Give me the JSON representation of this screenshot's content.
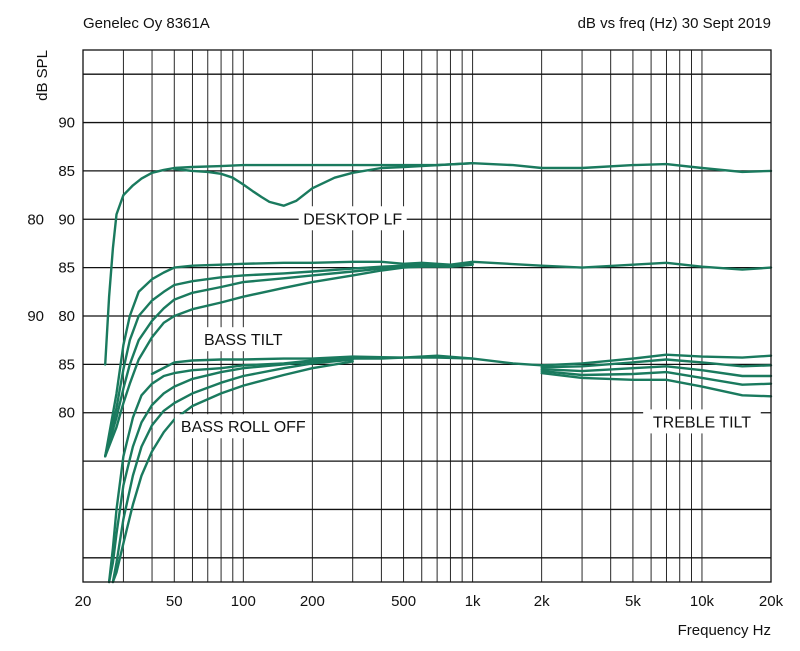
{
  "chart_data": {
    "type": "line",
    "title_left": "Genelec Oy 8361A",
    "title_right": "dB vs freq (Hz) 30 Sept 2019",
    "xlabel": "Frequency Hz",
    "ylabel": "dB SPL",
    "x_scale": "log",
    "xlim": [
      20,
      20000
    ],
    "x_grid": [
      20,
      30,
      40,
      50,
      60,
      70,
      80,
      90,
      100,
      200,
      300,
      400,
      500,
      600,
      700,
      800,
      900,
      1000,
      2000,
      3000,
      4000,
      5000,
      6000,
      7000,
      8000,
      9000,
      10000,
      20000
    ],
    "x_ticks": [
      {
        "value": 20,
        "label": "20"
      },
      {
        "value": 50,
        "label": "50"
      },
      {
        "value": 100,
        "label": "100"
      },
      {
        "value": 200,
        "label": "200"
      },
      {
        "value": 500,
        "label": "500"
      },
      {
        "value": 1000,
        "label": "1k"
      },
      {
        "value": 2000,
        "label": "2k"
      },
      {
        "value": 5000,
        "label": "5k"
      },
      {
        "value": 10000,
        "label": "10k"
      },
      {
        "value": 20000,
        "label": "20k"
      }
    ],
    "grid_levels": [
      95,
      90,
      85,
      80,
      75,
      70,
      65,
      60,
      55,
      50,
      45
    ],
    "ylim": [
      42.5,
      97.5
    ],
    "y_ticks": [
      {
        "value": 90,
        "labels": [
          "90"
        ]
      },
      {
        "value": 85,
        "labels": [
          "85"
        ]
      },
      {
        "value": 80,
        "labels": [
          "90",
          "80"
        ]
      },
      {
        "value": 75,
        "labels": [
          "85"
        ]
      },
      {
        "value": 70,
        "labels": [
          "80",
          "90"
        ]
      },
      {
        "value": 65,
        "labels": [
          "85"
        ]
      },
      {
        "value": 60,
        "labels": [
          "80"
        ]
      }
    ],
    "line_color": "#1a7a5e",
    "annotations": [
      {
        "text": "DESKTOP LF",
        "x": 300,
        "y": 80
      },
      {
        "text": "BASS TILT",
        "x": 100,
        "y": 67.5
      },
      {
        "text": "BASS ROLL OFF",
        "x": 100,
        "y": 58.5
      },
      {
        "text": "TREBLE TILT",
        "x": 10000,
        "y": 59
      }
    ],
    "series": [
      {
        "x": [
          25,
          26,
          27,
          28,
          30,
          33,
          36,
          40,
          45,
          50,
          60,
          80,
          100,
          200,
          300,
          500,
          700,
          1000,
          1500,
          2000,
          3000,
          5000,
          7000,
          10000,
          15000,
          20000
        ],
        "y": [
          65,
          72,
          77,
          80.5,
          82.5,
          83.5,
          84.2,
          84.8,
          85.1,
          85.3,
          85.4,
          85.5,
          85.6,
          85.6,
          85.6,
          85.6,
          85.6,
          85.8,
          85.6,
          85.3,
          85.3,
          85.6,
          85.7,
          85.3,
          84.9,
          85
        ]
      },
      {
        "x": [
          50,
          60,
          70,
          80,
          90,
          100,
          110,
          120,
          130,
          150,
          170,
          200,
          250,
          300,
          400,
          500,
          1000
        ],
        "y": [
          85.2,
          85,
          84.9,
          84.7,
          84.3,
          83.6,
          82.9,
          82.3,
          81.8,
          81.4,
          81.9,
          83.2,
          84.3,
          84.8,
          85.3,
          85.4,
          85.8
        ]
      },
      {
        "x": [
          25,
          28,
          30,
          32,
          35,
          40,
          45,
          50,
          60,
          80,
          100,
          150,
          200,
          300,
          400,
          500,
          600,
          800,
          1000,
          2000,
          3000,
          5000,
          7000,
          10000,
          15000,
          20000
        ],
        "y": [
          55.5,
          62,
          67,
          70,
          72.5,
          73.8,
          74.5,
          75,
          75.2,
          75.3,
          75.4,
          75.5,
          75.5,
          75.6,
          75.6,
          75.4,
          75.5,
          75.3,
          75.6,
          75.2,
          75,
          75.3,
          75.5,
          75.1,
          74.8,
          75
        ]
      },
      {
        "x": [
          25,
          28,
          30,
          32,
          35,
          40,
          45,
          50,
          60,
          80,
          100,
          150,
          200,
          300,
          400,
          500,
          600,
          800,
          1000
        ],
        "y": [
          55.5,
          60.5,
          64.5,
          67.5,
          70,
          71.6,
          72.5,
          73.2,
          73.6,
          74,
          74.2,
          74.4,
          74.6,
          74.9,
          75.1,
          75.2,
          75.3,
          75.2,
          75.4
        ]
      },
      {
        "x": [
          25,
          28,
          30,
          32,
          35,
          40,
          45,
          50,
          60,
          80,
          100,
          150,
          200,
          300,
          400,
          500,
          600,
          800,
          1000
        ],
        "y": [
          55.5,
          59.5,
          62.5,
          65,
          67.5,
          69.5,
          70.8,
          71.7,
          72.4,
          73,
          73.5,
          73.9,
          74.2,
          74.6,
          74.9,
          75.1,
          75.2,
          75.1,
          75.3
        ]
      },
      {
        "x": [
          25,
          28,
          30,
          32,
          35,
          40,
          45,
          50,
          60,
          80,
          100,
          150,
          200,
          300,
          400,
          500,
          600,
          800,
          1000
        ],
        "y": [
          55.5,
          58.5,
          61,
          63,
          65.5,
          67.8,
          69.3,
          70,
          70.7,
          71.4,
          72,
          72.9,
          73.5,
          74.2,
          74.7,
          75,
          75.1,
          75.1,
          75.3
        ]
      },
      {
        "x": [
          40,
          50,
          60,
          80,
          100,
          150,
          200,
          300,
          500,
          700,
          1000,
          1500,
          2000,
          3000,
          5000,
          7000,
          10000,
          15000,
          20000
        ],
        "y": [
          64,
          65.2,
          65.4,
          65.5,
          65.5,
          65.6,
          65.6,
          65.8,
          65.7,
          65.9,
          65.6,
          65.1,
          64.9,
          65.1,
          65.6,
          66,
          65.8,
          65.7,
          65.9
        ]
      },
      {
        "x": [
          2000,
          3000,
          5000,
          7000,
          10000,
          15000,
          20000
        ],
        "y": [
          64.7,
          64.8,
          65.2,
          65.5,
          65.2,
          64.8,
          64.9
        ]
      },
      {
        "x": [
          2000,
          3000,
          5000,
          7000,
          10000,
          15000,
          20000
        ],
        "y": [
          64.5,
          64.3,
          64.6,
          64.8,
          64.4,
          63.8,
          63.8
        ]
      },
      {
        "x": [
          2000,
          3000,
          5000,
          7000,
          10000,
          15000,
          20000
        ],
        "y": [
          64.3,
          63.9,
          64,
          64.2,
          63.6,
          62.9,
          63
        ]
      },
      {
        "x": [
          2000,
          3000,
          5000,
          7000,
          10000,
          15000,
          20000
        ],
        "y": [
          64.1,
          63.6,
          63.4,
          63.4,
          62.7,
          61.8,
          61.7
        ]
      },
      {
        "x": [
          26,
          27,
          28,
          30,
          33,
          36,
          40,
          45,
          50,
          60,
          80,
          100,
          150,
          200,
          300,
          400,
          500,
          700,
          1000
        ],
        "y": [
          42.5,
          46,
          50,
          55.5,
          59.5,
          61.8,
          63,
          63.8,
          64.1,
          64.4,
          64.6,
          64.9,
          65.1,
          65.4,
          65.6,
          65.6,
          65.7,
          65.7,
          65.6
        ]
      },
      {
        "x": [
          26,
          27,
          28,
          30,
          33,
          36,
          40,
          45,
          50,
          60,
          80,
          100,
          150,
          200,
          300
        ],
        "y": [
          42.5,
          44.5,
          47.5,
          52.5,
          56.5,
          59,
          60.8,
          62,
          62.7,
          63.5,
          64.2,
          64.6,
          65,
          65.3,
          65.6
        ]
      },
      {
        "x": [
          27,
          28,
          30,
          33,
          36,
          40,
          45,
          50,
          60,
          80,
          100,
          150,
          200,
          300
        ],
        "y": [
          42.5,
          44.5,
          49,
          53.5,
          56.5,
          58.7,
          60.2,
          61,
          62,
          63.1,
          63.8,
          64.6,
          65.1,
          65.5
        ]
      },
      {
        "x": [
          27,
          28,
          30,
          33,
          36,
          40,
          45,
          50,
          60,
          80,
          100,
          150,
          200,
          300
        ],
        "y": [
          42.5,
          43.5,
          46.5,
          50.5,
          53.5,
          56,
          58,
          59.3,
          60.7,
          62,
          62.8,
          63.9,
          64.6,
          65.3
        ]
      }
    ]
  }
}
